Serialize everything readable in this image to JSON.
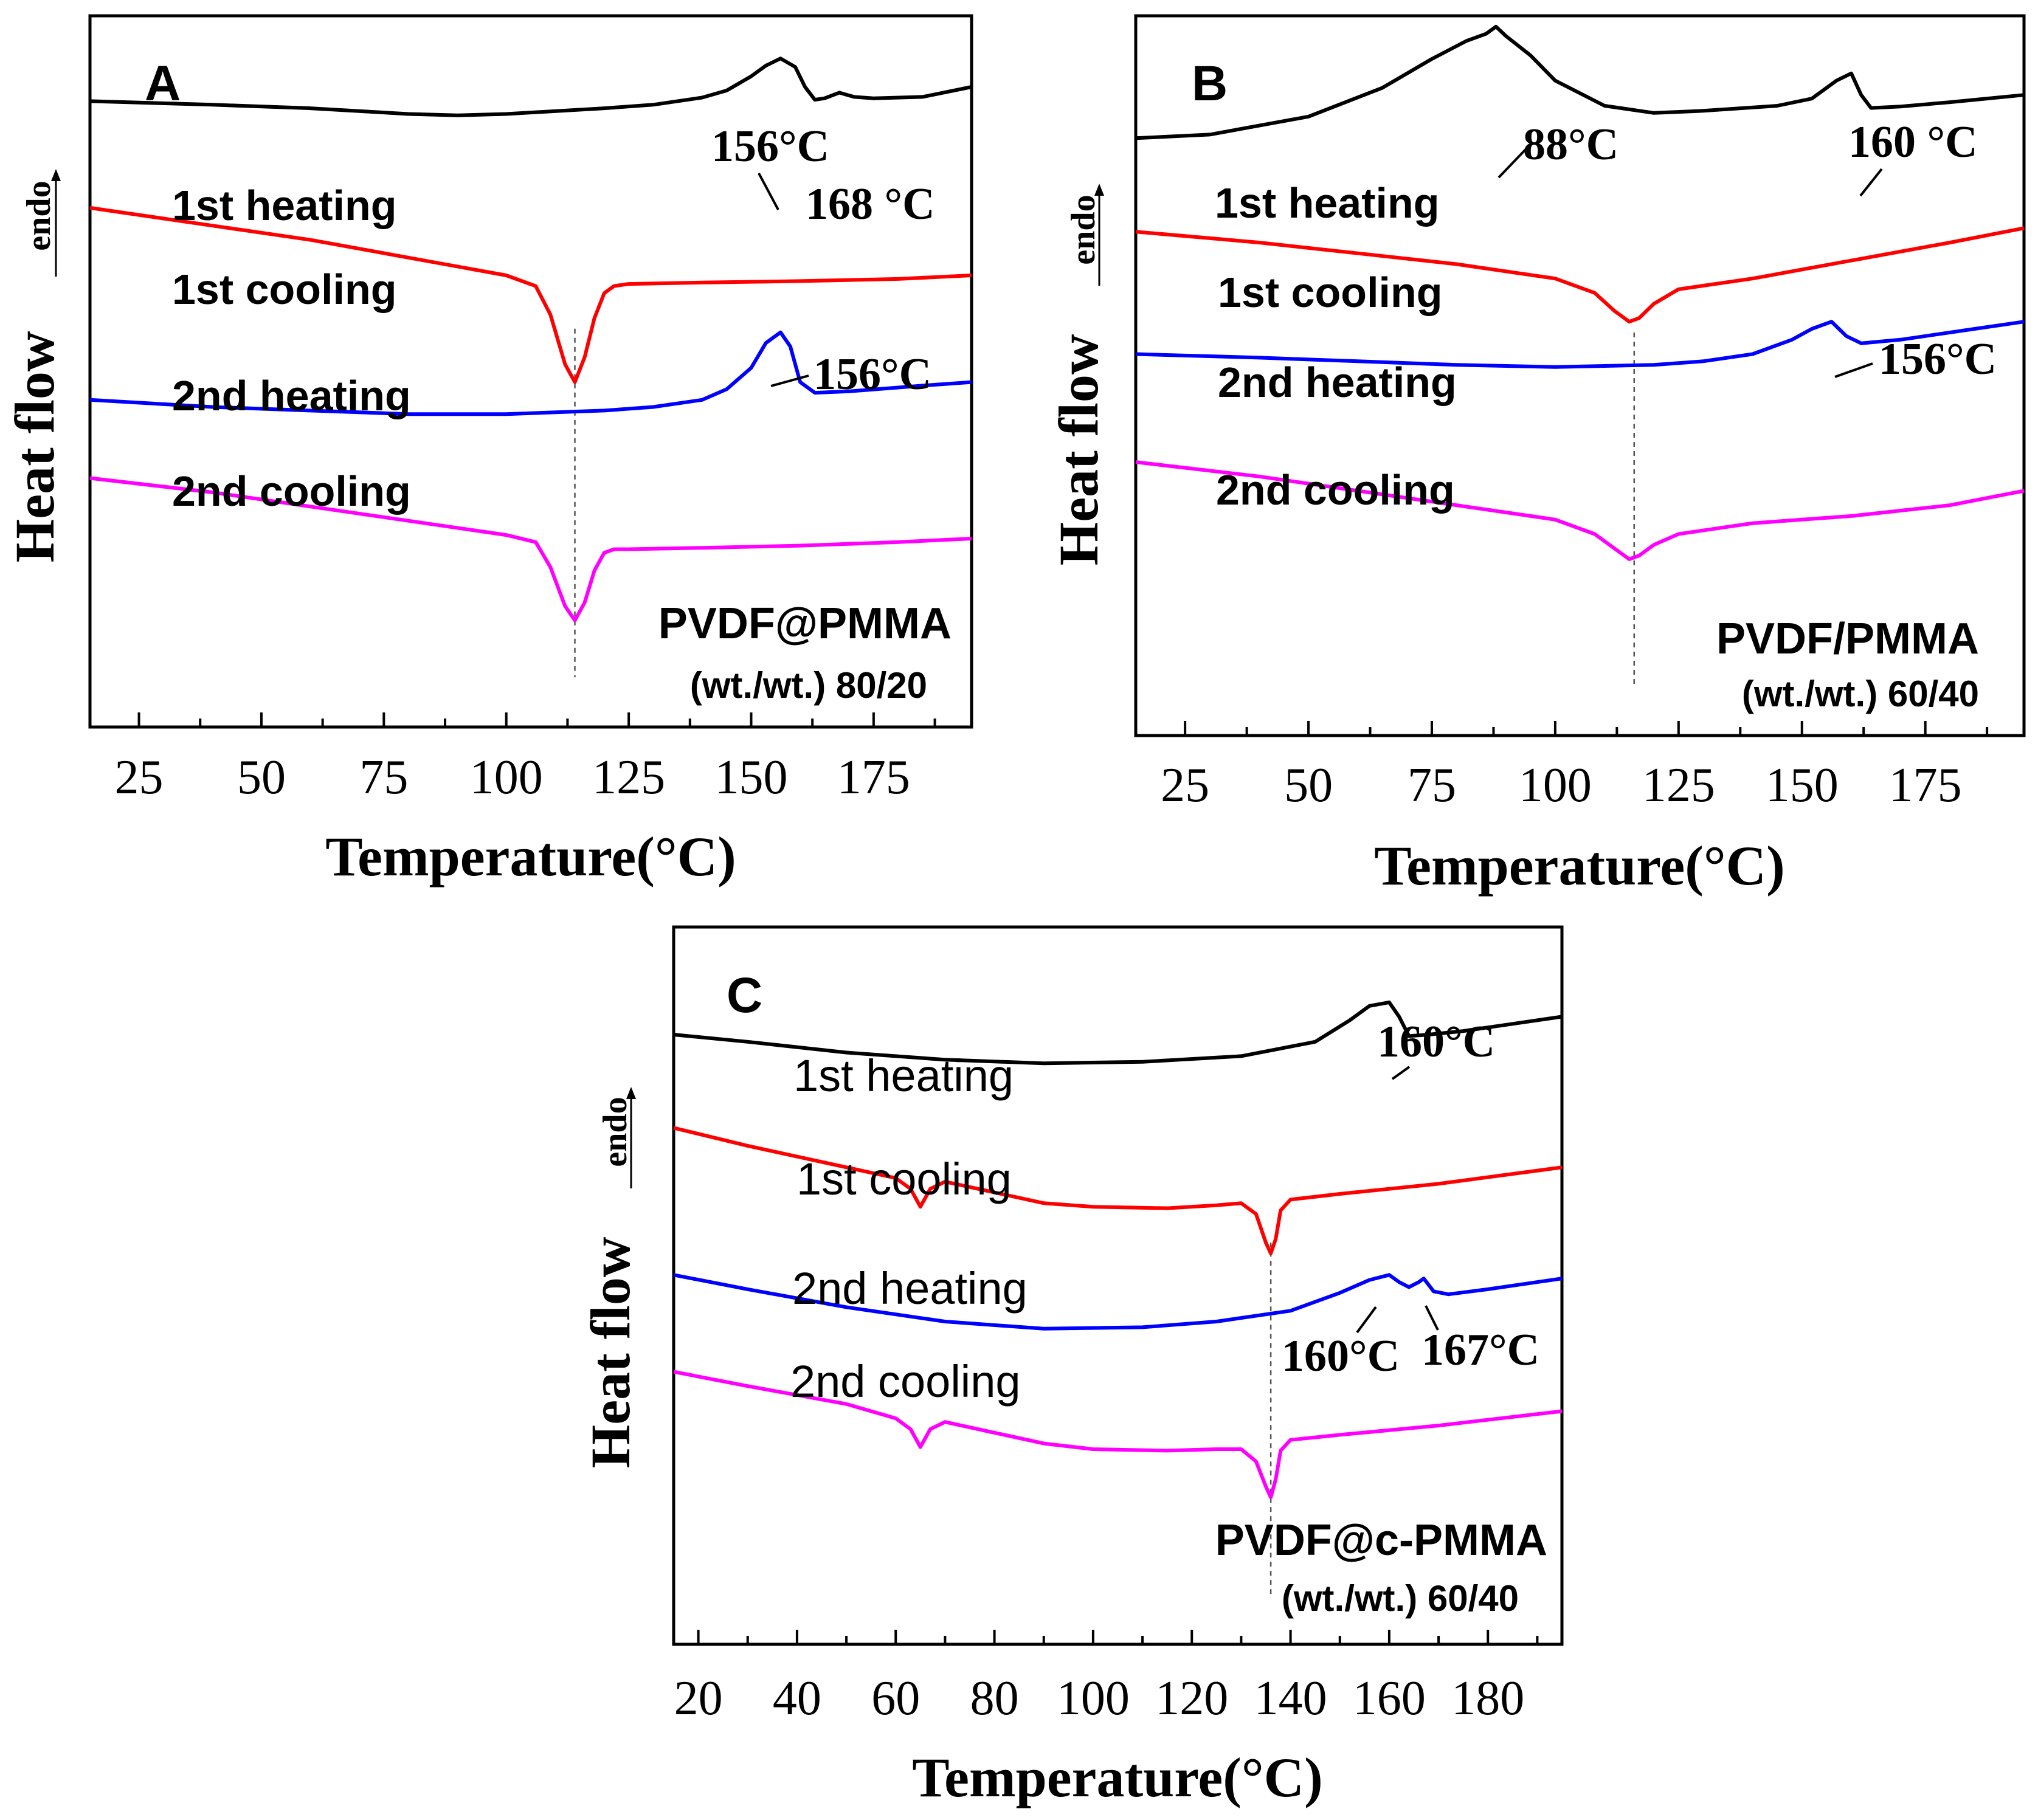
{
  "figure": {
    "panels": [
      {
        "id": "A",
        "panel_label": "A",
        "xlabel": "Temperature(°C)",
        "ylabel_main": "Heat flow",
        "ylabel_small": "endo",
        "xlim": [
          15,
          195
        ],
        "xticks": [
          25,
          50,
          75,
          100,
          125,
          150,
          175
        ],
        "xtick_labels": [
          "25",
          "50",
          "75",
          "100",
          "125",
          "150",
          "175"
        ],
        "sample_name": "PVDF@PMMA",
        "sample_ratio": "(wt./wt.) 80/20",
        "curve_labels": [
          "1st heating",
          "1st cooling",
          "2nd heating",
          "2nd cooling"
        ],
        "annotations": [
          "156°C",
          "168 °C",
          "156°C"
        ],
        "dashed_line_x": 114
      },
      {
        "id": "B",
        "panel_label": "B",
        "xlabel": "Temperature(°C)",
        "ylabel_main": "Heat flow",
        "ylabel_small": "endo",
        "xlim": [
          15,
          195
        ],
        "xticks": [
          25,
          50,
          75,
          100,
          125,
          150,
          175
        ],
        "xtick_labels": [
          "25",
          "50",
          "75",
          "100",
          "125",
          "150",
          "175"
        ],
        "sample_name": "PVDF/PMMA",
        "sample_ratio": "(wt./wt.) 60/40",
        "curve_labels": [
          "1st heating",
          "1st cooling",
          "2nd heating",
          "2nd cooling"
        ],
        "annotations": [
          "88°C",
          "160 °C",
          "156°C"
        ],
        "dashed_line_x": 116
      },
      {
        "id": "C",
        "panel_label": "C",
        "xlabel": "Temperature(°C)",
        "ylabel_main": "Heat flow",
        "ylabel_small": "endo",
        "xlim": [
          15,
          195
        ],
        "xticks": [
          20,
          40,
          60,
          80,
          100,
          120,
          140,
          160,
          180
        ],
        "xtick_labels": [
          "20",
          "40",
          "60",
          "80",
          "100",
          "120",
          "140",
          "160",
          "180"
        ],
        "sample_name": "PVDF@c-PMMA",
        "sample_ratio": "(wt./wt.) 60/40",
        "curve_labels": [
          "1st heating",
          "1st cooling",
          "2nd heating",
          "2nd cooling"
        ],
        "annotations": [
          "160°C",
          "160°C",
          "167°C"
        ],
        "dashed_line_x": 136
      }
    ]
  },
  "chart_data": [
    {
      "type": "line",
      "title": "A",
      "xlabel": "Temperature(°C)",
      "ylabel": "Heat flow endo",
      "xlim": [
        15,
        195
      ],
      "series": [
        {
          "name": "1st heating",
          "color": "#000000",
          "x": [
            15,
            40,
            60,
            80,
            90,
            100,
            120,
            130,
            140,
            145,
            150,
            153,
            156,
            159,
            161,
            163,
            165,
            168,
            171,
            175,
            185,
            195
          ],
          "y": [
            8.8,
            8.75,
            8.7,
            8.62,
            8.6,
            8.62,
            8.7,
            8.75,
            8.85,
            8.95,
            9.15,
            9.3,
            9.4,
            9.28,
            9.0,
            8.82,
            8.84,
            8.92,
            8.86,
            8.84,
            8.86,
            9.0
          ]
        },
        {
          "name": "1st cooling",
          "color": "#ff0000",
          "x": [
            15,
            40,
            60,
            80,
            100,
            106,
            109,
            112,
            114,
            116,
            118,
            120,
            122,
            125,
            140,
            160,
            180,
            195
          ],
          "y": [
            7.3,
            7.05,
            6.85,
            6.6,
            6.35,
            6.2,
            5.8,
            5.1,
            4.85,
            5.2,
            5.75,
            6.1,
            6.2,
            6.23,
            6.25,
            6.27,
            6.3,
            6.35
          ]
        },
        {
          "name": "2nd heating",
          "color": "#0000ff",
          "x": [
            15,
            40,
            60,
            80,
            100,
            120,
            130,
            140,
            145,
            150,
            153,
            156,
            158,
            160,
            163,
            170,
            185,
            195
          ],
          "y": [
            4.6,
            4.5,
            4.45,
            4.4,
            4.4,
            4.45,
            4.5,
            4.6,
            4.75,
            5.05,
            5.4,
            5.55,
            5.35,
            4.85,
            4.7,
            4.72,
            4.8,
            4.85
          ]
        },
        {
          "name": "2nd cooling",
          "color": "#ff00ff",
          "x": [
            15,
            40,
            60,
            80,
            100,
            106,
            109,
            112,
            114,
            116,
            118,
            120,
            122,
            125,
            140,
            160,
            180,
            195
          ],
          "y": [
            3.5,
            3.3,
            3.1,
            2.9,
            2.7,
            2.6,
            2.25,
            1.7,
            1.5,
            1.75,
            2.2,
            2.45,
            2.5,
            2.5,
            2.52,
            2.55,
            2.6,
            2.65
          ]
        }
      ]
    },
    {
      "type": "line",
      "title": "B",
      "xlabel": "Temperature(°C)",
      "ylabel": "Heat flow endo",
      "xlim": [
        15,
        195
      ],
      "series": [
        {
          "name": "1st heating",
          "color": "#000000",
          "x": [
            15,
            30,
            50,
            65,
            75,
            82,
            86,
            88,
            90,
            95,
            100,
            110,
            120,
            130,
            145,
            152,
            157,
            160,
            162,
            164,
            170,
            180,
            195
          ],
          "y": [
            8.3,
            8.35,
            8.6,
            9.0,
            9.4,
            9.65,
            9.75,
            9.85,
            9.72,
            9.45,
            9.1,
            8.75,
            8.65,
            8.68,
            8.75,
            8.85,
            9.1,
            9.2,
            8.9,
            8.72,
            8.74,
            8.8,
            8.9
          ]
        },
        {
          "name": "1st cooling",
          "color": "#ff0000",
          "x": [
            15,
            40,
            60,
            80,
            100,
            108,
            112,
            115,
            117,
            120,
            125,
            140,
            160,
            180,
            195
          ],
          "y": [
            7.0,
            6.85,
            6.7,
            6.55,
            6.35,
            6.15,
            5.9,
            5.75,
            5.8,
            6.0,
            6.2,
            6.35,
            6.6,
            6.85,
            7.05
          ]
        },
        {
          "name": "2nd heating",
          "color": "#0000ff",
          "x": [
            15,
            40,
            60,
            80,
            100,
            120,
            130,
            140,
            148,
            152,
            156,
            159,
            162,
            170,
            185,
            195
          ],
          "y": [
            5.3,
            5.25,
            5.2,
            5.15,
            5.12,
            5.15,
            5.2,
            5.3,
            5.5,
            5.65,
            5.75,
            5.55,
            5.45,
            5.5,
            5.65,
            5.75
          ]
        },
        {
          "name": "2nd cooling",
          "color": "#ff00ff",
          "x": [
            15,
            40,
            60,
            80,
            100,
            108,
            112,
            115,
            117,
            120,
            125,
            140,
            160,
            180,
            195
          ],
          "y": [
            3.8,
            3.6,
            3.4,
            3.2,
            3.0,
            2.8,
            2.6,
            2.45,
            2.5,
            2.65,
            2.8,
            2.95,
            3.05,
            3.2,
            3.4
          ]
        }
      ]
    },
    {
      "type": "line",
      "title": "C",
      "xlabel": "Temperature(°C)",
      "ylabel": "Heat flow endo",
      "xlim": [
        15,
        195
      ],
      "series": [
        {
          "name": "1st heating",
          "color": "#000000",
          "x": [
            15,
            30,
            50,
            70,
            90,
            110,
            130,
            145,
            152,
            156,
            160,
            162,
            164,
            168,
            175,
            185,
            195
          ],
          "y": [
            8.5,
            8.4,
            8.25,
            8.15,
            8.1,
            8.12,
            8.2,
            8.4,
            8.7,
            8.9,
            8.95,
            8.75,
            8.48,
            8.5,
            8.55,
            8.65,
            8.75
          ]
        },
        {
          "name": "1st cooling",
          "color": "#ff0000",
          "x": [
            15,
            30,
            50,
            60,
            63,
            65,
            67,
            70,
            80,
            90,
            100,
            115,
            125,
            130,
            133,
            135,
            136,
            137,
            138,
            140,
            150,
            170,
            195
          ],
          "y": [
            7.2,
            6.95,
            6.65,
            6.5,
            6.35,
            6.1,
            6.35,
            6.45,
            6.3,
            6.15,
            6.1,
            6.08,
            6.12,
            6.15,
            6.0,
            5.6,
            5.45,
            5.65,
            6.05,
            6.2,
            6.28,
            6.42,
            6.65
          ]
        },
        {
          "name": "2nd heating",
          "color": "#0000ff",
          "x": [
            15,
            30,
            50,
            70,
            90,
            110,
            125,
            140,
            150,
            156,
            160,
            162,
            164,
            166,
            167,
            169,
            172,
            180,
            195
          ],
          "y": [
            5.15,
            4.95,
            4.7,
            4.5,
            4.4,
            4.42,
            4.5,
            4.65,
            4.9,
            5.08,
            5.15,
            5.05,
            4.98,
            5.05,
            5.1,
            4.92,
            4.88,
            4.95,
            5.1
          ]
        },
        {
          "name": "2nd cooling",
          "color": "#ff00ff",
          "x": [
            15,
            30,
            50,
            60,
            63,
            65,
            67,
            70,
            80,
            90,
            100,
            115,
            125,
            130,
            133,
            135,
            136,
            137,
            138,
            140,
            150,
            170,
            195
          ],
          "y": [
            3.8,
            3.6,
            3.35,
            3.15,
            3.0,
            2.75,
            3.0,
            3.1,
            2.95,
            2.8,
            2.72,
            2.7,
            2.72,
            2.72,
            2.55,
            2.2,
            2.05,
            2.3,
            2.7,
            2.85,
            2.92,
            3.05,
            3.25
          ]
        }
      ]
    }
  ]
}
